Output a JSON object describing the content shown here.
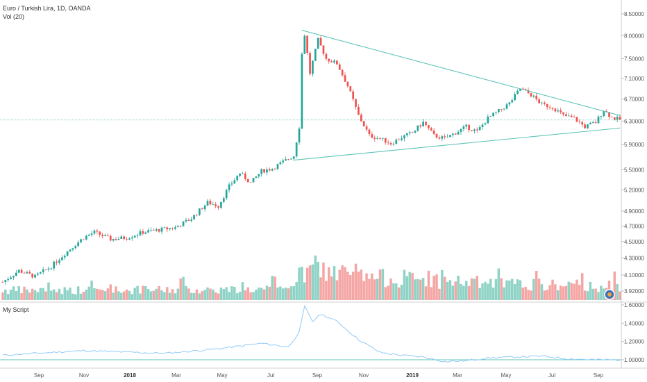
{
  "header": {
    "symbol_title": "Euro / Turkish Lira, 1D, OANDA",
    "volume_label": "Vol (20)",
    "indicator_label": "My Script"
  },
  "colors": {
    "up": "#26a69a",
    "down": "#ef5350",
    "volume_up": "#8fd3c6",
    "volume_down": "#f4a6a4",
    "trendline": "#5fc4b8",
    "indicator": "#90caf9",
    "baseline": "#5fc4b8"
  },
  "chart_data": [
    {
      "type": "candlestick",
      "title": "Euro / Turkish Lira, 1D, OANDA",
      "price_axis_labels": [
        "8.50000",
        "8.00000",
        "7.50000",
        "7.10000",
        "6.70000",
        "6.30000",
        "5.90000",
        "5.50000",
        "5.20000",
        "4.90000",
        "4.70000",
        "4.50000",
        "4.30000",
        "4.10000",
        "3.92000"
      ],
      "x_axis_labels": [
        "Sep",
        "Nov",
        "2018",
        "Mar",
        "May",
        "Jul",
        "Sep",
        "Nov",
        "2019",
        "Mar",
        "May",
        "Jul",
        "Sep"
      ],
      "bold_x_labels": [
        "2018",
        "2019"
      ],
      "current_price_line": 6.32,
      "anchors": [
        {
          "t": 0,
          "v": 4.02
        },
        {
          "t": 6,
          "v": 4.15
        },
        {
          "t": 12,
          "v": 4.08
        },
        {
          "t": 18,
          "v": 4.2
        },
        {
          "t": 24,
          "v": 4.38
        },
        {
          "t": 30,
          "v": 4.55
        },
        {
          "t": 34,
          "v": 4.62
        },
        {
          "t": 40,
          "v": 4.53
        },
        {
          "t": 46,
          "v": 4.55
        },
        {
          "t": 52,
          "v": 4.62
        },
        {
          "t": 58,
          "v": 4.65
        },
        {
          "t": 64,
          "v": 4.68
        },
        {
          "t": 70,
          "v": 4.8
        },
        {
          "t": 76,
          "v": 5.02
        },
        {
          "t": 80,
          "v": 4.97
        },
        {
          "t": 84,
          "v": 5.25
        },
        {
          "t": 88,
          "v": 5.45
        },
        {
          "t": 92,
          "v": 5.3
        },
        {
          "t": 96,
          "v": 5.48
        },
        {
          "t": 100,
          "v": 5.52
        },
        {
          "t": 104,
          "v": 5.62
        },
        {
          "t": 108,
          "v": 5.72
        },
        {
          "t": 110,
          "v": 6.2
        },
        {
          "t": 111,
          "v": 7.6
        },
        {
          "t": 112,
          "v": 8.02
        },
        {
          "t": 114,
          "v": 7.2
        },
        {
          "t": 117,
          "v": 7.9
        },
        {
          "t": 120,
          "v": 7.5
        },
        {
          "t": 124,
          "v": 7.4
        },
        {
          "t": 128,
          "v": 6.95
        },
        {
          "t": 132,
          "v": 6.4
        },
        {
          "t": 136,
          "v": 6.05
        },
        {
          "t": 140,
          "v": 6.0
        },
        {
          "t": 144,
          "v": 5.92
        },
        {
          "t": 148,
          "v": 6.02
        },
        {
          "t": 152,
          "v": 6.1
        },
        {
          "t": 156,
          "v": 6.28
        },
        {
          "t": 160,
          "v": 6.05
        },
        {
          "t": 164,
          "v": 6.0
        },
        {
          "t": 168,
          "v": 6.1
        },
        {
          "t": 172,
          "v": 6.2
        },
        {
          "t": 176,
          "v": 6.12
        },
        {
          "t": 180,
          "v": 6.35
        },
        {
          "t": 184,
          "v": 6.48
        },
        {
          "t": 188,
          "v": 6.62
        },
        {
          "t": 192,
          "v": 6.9
        },
        {
          "t": 196,
          "v": 6.78
        },
        {
          "t": 200,
          "v": 6.6
        },
        {
          "t": 204,
          "v": 6.55
        },
        {
          "t": 208,
          "v": 6.4
        },
        {
          "t": 212,
          "v": 6.35
        },
        {
          "t": 216,
          "v": 6.2
        },
        {
          "t": 220,
          "v": 6.28
        },
        {
          "t": 223,
          "v": 6.5
        },
        {
          "t": 226,
          "v": 6.36
        },
        {
          "t": 229,
          "v": 6.33
        }
      ],
      "volume_levels": [
        {
          "t": 0,
          "v": 1.0
        },
        {
          "t": 104,
          "v": 1.1
        },
        {
          "t": 110,
          "v": 2.4
        },
        {
          "t": 116,
          "v": 3.2
        },
        {
          "t": 132,
          "v": 2.4
        },
        {
          "t": 160,
          "v": 2.0
        },
        {
          "t": 190,
          "v": 1.6
        },
        {
          "t": 229,
          "v": 1.4
        }
      ],
      "trendlines": [
        {
          "from": {
            "t": 111,
            "v": 8.12
          },
          "to": {
            "t": 229,
            "v": 6.4
          }
        },
        {
          "from": {
            "t": 108,
            "v": 5.65
          },
          "to": {
            "t": 229,
            "v": 6.18
          }
        }
      ]
    },
    {
      "type": "line",
      "title": "My Script",
      "y_axis_labels": [
        "1.60000",
        "1.40000",
        "1.20000",
        "1.00000"
      ],
      "baseline": 1.0,
      "anchors": [
        {
          "t": 0,
          "v": 1.05
        },
        {
          "t": 30,
          "v": 1.1
        },
        {
          "t": 60,
          "v": 1.07
        },
        {
          "t": 80,
          "v": 1.12
        },
        {
          "t": 96,
          "v": 1.18
        },
        {
          "t": 106,
          "v": 1.14
        },
        {
          "t": 110,
          "v": 1.3
        },
        {
          "t": 112,
          "v": 1.58
        },
        {
          "t": 115,
          "v": 1.42
        },
        {
          "t": 118,
          "v": 1.5
        },
        {
          "t": 124,
          "v": 1.42
        },
        {
          "t": 132,
          "v": 1.22
        },
        {
          "t": 140,
          "v": 1.08
        },
        {
          "t": 148,
          "v": 1.05
        },
        {
          "t": 156,
          "v": 1.03
        },
        {
          "t": 164,
          "v": 0.98
        },
        {
          "t": 172,
          "v": 0.99
        },
        {
          "t": 180,
          "v": 1.02
        },
        {
          "t": 190,
          "v": 1.03
        },
        {
          "t": 200,
          "v": 1.04
        },
        {
          "t": 210,
          "v": 1.01
        },
        {
          "t": 220,
          "v": 1.0
        },
        {
          "t": 229,
          "v": 1.0
        }
      ]
    }
  ]
}
